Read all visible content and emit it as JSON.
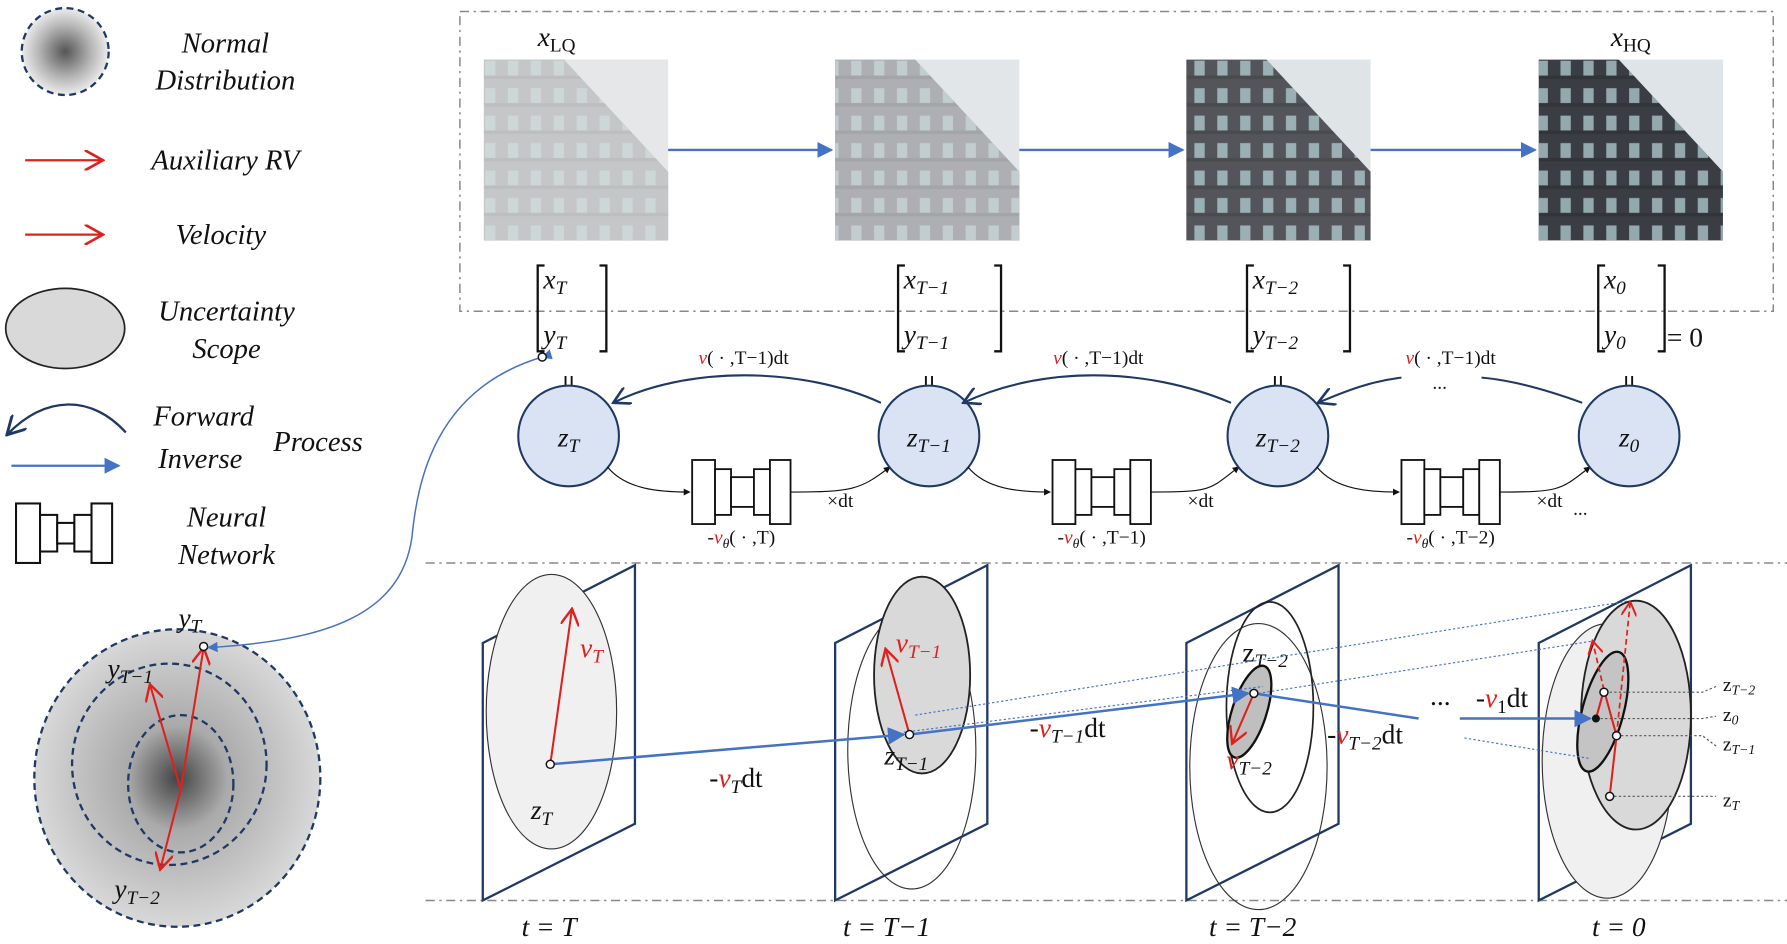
{
  "colors": {
    "red": "#e0201e",
    "navy": "#1f3864",
    "blue": "#4472c4",
    "node_fill": "#dae3f3",
    "scope_light": "#f0f0f0",
    "scope_dark": "#d9d9d9"
  },
  "legend": {
    "normal_distribution": [
      "Normal",
      "Distribution"
    ],
    "auxiliary_rv": "Auxiliary RV",
    "velocity": "Velocity",
    "uncertainty_scope": [
      "Uncertainty",
      "Scope"
    ],
    "forward": "Forward",
    "inverse": "Inverse",
    "process": "Process",
    "neural_network": [
      "Neural",
      "Network"
    ]
  },
  "top": {
    "x_lq": {
      "v": "x",
      "sub": "LQ"
    },
    "x_hq": {
      "v": "x",
      "sub": "HQ"
    }
  },
  "states": [
    {
      "x": "x",
      "y": "y",
      "z": "z",
      "sub": "T"
    },
    {
      "x": "x",
      "y": "y",
      "z": "z",
      "sub": "T−1"
    },
    {
      "x": "x",
      "y": "y",
      "z": "z",
      "sub": "T−2"
    },
    {
      "x": "x",
      "y": "y",
      "z": "z",
      "sub": "0"
    }
  ],
  "y0_equals": "= 0",
  "equal_sign": "||",
  "forward_labels": [
    {
      "v": "v",
      "rest": "( · ,T−1)dt"
    },
    {
      "v": "v",
      "rest": "( · ,T−1)dt"
    },
    {
      "v": "v",
      "rest": "( · ,T−1)dt",
      "ellipsis": "..."
    }
  ],
  "nn_labels": [
    {
      "minus": "-",
      "v": "v",
      "sub": "θ",
      "rest": "( · ,T)"
    },
    {
      "minus": "-",
      "v": "v",
      "sub": "θ",
      "rest": "( · ,T−1)"
    },
    {
      "minus": "-",
      "v": "v",
      "sub": "θ",
      "rest": "( · ,T−2)"
    }
  ],
  "times_dt": [
    "×dt",
    "×dt",
    "×dt"
  ],
  "times_dt_ellipsis": "...",
  "time_labels": [
    "t = T",
    "t = T−1",
    "t = T−2",
    "t = 0"
  ],
  "left_dist": {
    "y": "y",
    "subs": [
      "T",
      "T−1",
      "T−2"
    ]
  },
  "bottom": {
    "v_T": {
      "v": "v",
      "sub": "T"
    },
    "z_T": {
      "v": "z",
      "sub": "T"
    },
    "step1": {
      "minus": "-",
      "v": "v",
      "sub": "T",
      "rest": "dt"
    },
    "v_T1": {
      "v": "v",
      "sub": "T−1"
    },
    "z_T1": {
      "v": "z",
      "sub": "T−1"
    },
    "step2": {
      "minus": "-",
      "v": "v",
      "sub": "T−1",
      "rest": "dt"
    },
    "z_T2": {
      "v": "z",
      "sub": "T−2"
    },
    "v_T2": {
      "v": "v",
      "sub": "T−2"
    },
    "step3": {
      "minus": "-",
      "v": "v",
      "sub": "T−2",
      "rest": "dt"
    },
    "ellipsis": "...",
    "step_last": {
      "minus": "-",
      "v": "v",
      "sub": "1",
      "rest": "dt"
    },
    "final_labels": [
      {
        "v": "z",
        "sub": "T−2"
      },
      {
        "v": "z",
        "sub": "0"
      },
      {
        "v": "z",
        "sub": "T−1"
      },
      {
        "v": "z",
        "sub": "T"
      }
    ]
  }
}
